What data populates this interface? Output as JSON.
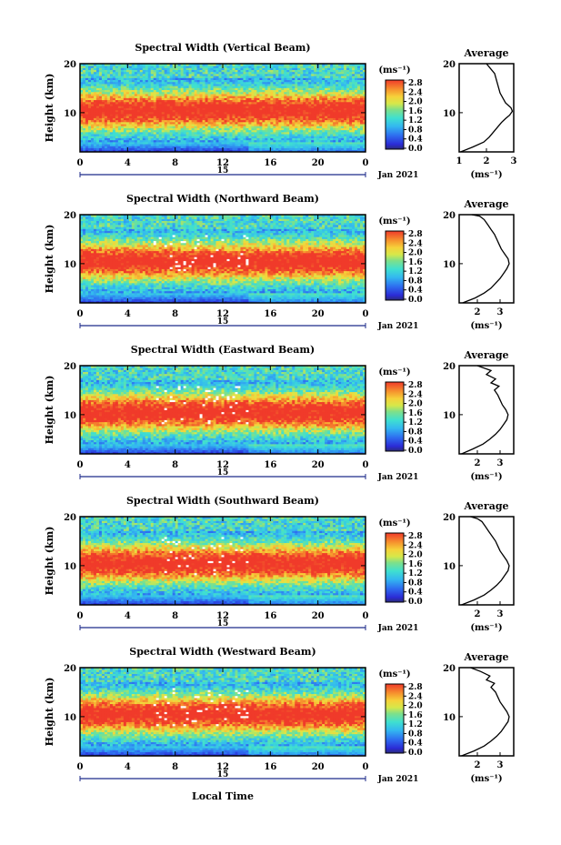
{
  "figure": {
    "xlabel_shared": "Local Time",
    "date_label": "Jan 2021",
    "day_label": "15",
    "cbar_unit": "(ms⁻¹)",
    "height_label": "Height (km)",
    "avg_title": "Average",
    "avg_xlabel": "(ms⁻¹)"
  },
  "chart_data": [
    {
      "type": "heatmap",
      "title": "Spectral Width (Vertical Beam)",
      "xlabel": "",
      "ylabel": "Height (km)",
      "xlim": [
        0,
        24
      ],
      "ylim": [
        2,
        20
      ],
      "xticks": [
        "0",
        "4",
        "8",
        "12",
        "16",
        "20",
        "0"
      ],
      "yticks": [
        "10",
        "20"
      ],
      "colorbar": {
        "unit": "(ms⁻¹)",
        "ticks": [
          "0.0",
          "0.4",
          "0.8",
          "1.2",
          "1.6",
          "2.0",
          "2.4",
          "2.8"
        ],
        "range": [
          0,
          2.8
        ]
      },
      "average_profile": {
        "title": "Average",
        "xlabel": "(ms⁻¹)",
        "xticks": [
          "1",
          "2",
          "3"
        ],
        "xlim": [
          1,
          3
        ],
        "ylim": [
          2,
          20
        ],
        "yticks": [
          "10",
          "20"
        ],
        "x": [
          1.05,
          1.5,
          1.9,
          2.1,
          2.25,
          2.4,
          2.55,
          2.7,
          2.85,
          2.95,
          2.9,
          2.7,
          2.6,
          2.5,
          2.45,
          2.4,
          2.35,
          2.3,
          2.15,
          2.0
        ],
        "y": [
          2,
          3,
          4,
          5,
          6,
          7,
          8,
          8.8,
          9.5,
          10.3,
          11,
          12,
          13,
          14,
          15,
          16,
          17,
          18,
          19,
          20
        ]
      }
    },
    {
      "type": "heatmap",
      "title": "Spectral Width (Northward Beam)",
      "xlabel": "",
      "ylabel": "Height (km)",
      "xlim": [
        0,
        24
      ],
      "ylim": [
        2,
        20
      ],
      "xticks": [
        "0",
        "4",
        "8",
        "12",
        "16",
        "20",
        "0"
      ],
      "yticks": [
        "10",
        "20"
      ],
      "colorbar": {
        "unit": "(ms⁻¹)",
        "ticks": [
          "0.0",
          "0.4",
          "0.8",
          "1.2",
          "1.6",
          "2.0",
          "2.4",
          "2.8"
        ],
        "range": [
          0,
          2.8
        ]
      },
      "average_profile": {
        "title": "Average",
        "xlabel": "(ms⁻¹)",
        "xticks": [
          "2",
          "3"
        ],
        "xlim": [
          1.2,
          3.6
        ],
        "ylim": [
          2,
          20
        ],
        "yticks": [
          "10",
          "20"
        ],
        "x": [
          1.35,
          1.9,
          2.3,
          2.6,
          2.8,
          3.0,
          3.15,
          3.3,
          3.4,
          3.35,
          3.2,
          3.05,
          2.95,
          2.85,
          2.75,
          2.6,
          2.45,
          2.3,
          2.1,
          1.75
        ],
        "y": [
          2,
          3,
          4,
          5,
          6,
          7,
          8,
          9,
          10,
          11,
          12,
          13,
          14,
          15,
          16,
          17,
          18,
          19,
          19.7,
          20
        ]
      }
    },
    {
      "type": "heatmap",
      "title": "Spectral Width (Eastward Beam)",
      "xlabel": "",
      "ylabel": "Height (km)",
      "xlim": [
        0,
        24
      ],
      "ylim": [
        2,
        20
      ],
      "xticks": [
        "0",
        "4",
        "8",
        "12",
        "16",
        "20",
        "0"
      ],
      "yticks": [
        "10",
        "20"
      ],
      "colorbar": {
        "unit": "(ms⁻¹)",
        "ticks": [
          "0.0",
          "0.4",
          "0.8",
          "1.2",
          "1.6",
          "2.0",
          "2.4",
          "2.8"
        ],
        "range": [
          0,
          2.8
        ]
      },
      "average_profile": {
        "title": "Average",
        "xlabel": "(ms⁻¹)",
        "xticks": [
          "2",
          "3"
        ],
        "xlim": [
          1.2,
          3.6
        ],
        "ylim": [
          2,
          20
        ],
        "yticks": [
          "10",
          "20"
        ],
        "x": [
          1.3,
          1.8,
          2.25,
          2.55,
          2.8,
          3.0,
          3.15,
          3.3,
          3.35,
          3.25,
          3.1,
          3.0,
          2.9,
          2.75,
          2.95,
          2.6,
          2.8,
          2.4,
          2.6,
          2.0
        ],
        "y": [
          2,
          3,
          4,
          5,
          6,
          7,
          8,
          9,
          10,
          11,
          12,
          13,
          14,
          15,
          15.8,
          16.5,
          17.3,
          18.2,
          19,
          20
        ]
      }
    },
    {
      "type": "heatmap",
      "title": "Spectral Width (Southward Beam)",
      "xlabel": "",
      "ylabel": "Height (km)",
      "xlim": [
        0,
        24
      ],
      "ylim": [
        2,
        20
      ],
      "xticks": [
        "0",
        "4",
        "8",
        "12",
        "16",
        "20",
        "0"
      ],
      "yticks": [
        "10",
        "20"
      ],
      "colorbar": {
        "unit": "(ms⁻¹)",
        "ticks": [
          "0.0",
          "0.4",
          "0.8",
          "1.2",
          "1.6",
          "2.0",
          "2.4",
          "2.8"
        ],
        "range": [
          0,
          2.8
        ]
      },
      "average_profile": {
        "title": "Average",
        "xlabel": "(ms⁻¹)",
        "xticks": [
          "2",
          "3"
        ],
        "xlim": [
          1.2,
          3.6
        ],
        "ylim": [
          2,
          20
        ],
        "yticks": [
          "10",
          "20"
        ],
        "x": [
          1.3,
          1.85,
          2.3,
          2.6,
          2.85,
          3.05,
          3.2,
          3.35,
          3.4,
          3.3,
          3.15,
          3.0,
          2.9,
          2.8,
          2.65,
          2.5,
          2.35,
          2.2,
          2.0,
          1.7
        ],
        "y": [
          2,
          3,
          4,
          5,
          6,
          7,
          8,
          9,
          10,
          11,
          12,
          13,
          14,
          15,
          16,
          17,
          18,
          19,
          19.6,
          20
        ]
      }
    },
    {
      "type": "heatmap",
      "title": "Spectral Width (Westward Beam)",
      "xlabel": "Local Time",
      "ylabel": "Height (km)",
      "xlim": [
        0,
        24
      ],
      "ylim": [
        2,
        20
      ],
      "xticks": [
        "0",
        "4",
        "8",
        "12",
        "16",
        "20",
        "0"
      ],
      "yticks": [
        "10",
        "20"
      ],
      "colorbar": {
        "unit": "(ms⁻¹)",
        "ticks": [
          "0.0",
          "0.4",
          "0.8",
          "1.2",
          "1.6",
          "2.0",
          "2.4",
          "2.8"
        ],
        "range": [
          0,
          2.8
        ]
      },
      "average_profile": {
        "title": "Average",
        "xlabel": "(ms⁻¹)",
        "xticks": [
          "2",
          "3"
        ],
        "xlim": [
          1.2,
          3.6
        ],
        "ylim": [
          2,
          20
        ],
        "yticks": [
          "10",
          "20"
        ],
        "x": [
          1.3,
          1.85,
          2.3,
          2.6,
          2.85,
          3.05,
          3.2,
          3.35,
          3.4,
          3.3,
          3.15,
          3.0,
          2.9,
          2.8,
          2.6,
          2.75,
          2.4,
          2.55,
          2.15,
          1.7
        ],
        "y": [
          2,
          3,
          4,
          5,
          6,
          7,
          8,
          9,
          10,
          11,
          12,
          13,
          14,
          15,
          16,
          16.8,
          17.5,
          18.3,
          19.2,
          20
        ]
      }
    }
  ]
}
